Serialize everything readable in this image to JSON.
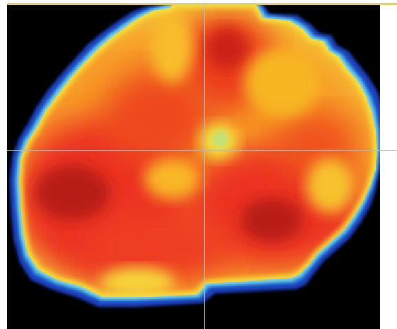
{
  "image": {
    "subject": "heatmap-intensity-map",
    "background_color": "#000000",
    "frame_color": "#ffffff",
    "top_edge_color": "#e8d44a",
    "crosshair_color": "#b8b8b8",
    "colormap": [
      "#1f3fbf",
      "#2b8ad6",
      "#7fd4e6",
      "#f4e23a",
      "#f7a321",
      "#ef3b1f",
      "#b31a12"
    ]
  }
}
